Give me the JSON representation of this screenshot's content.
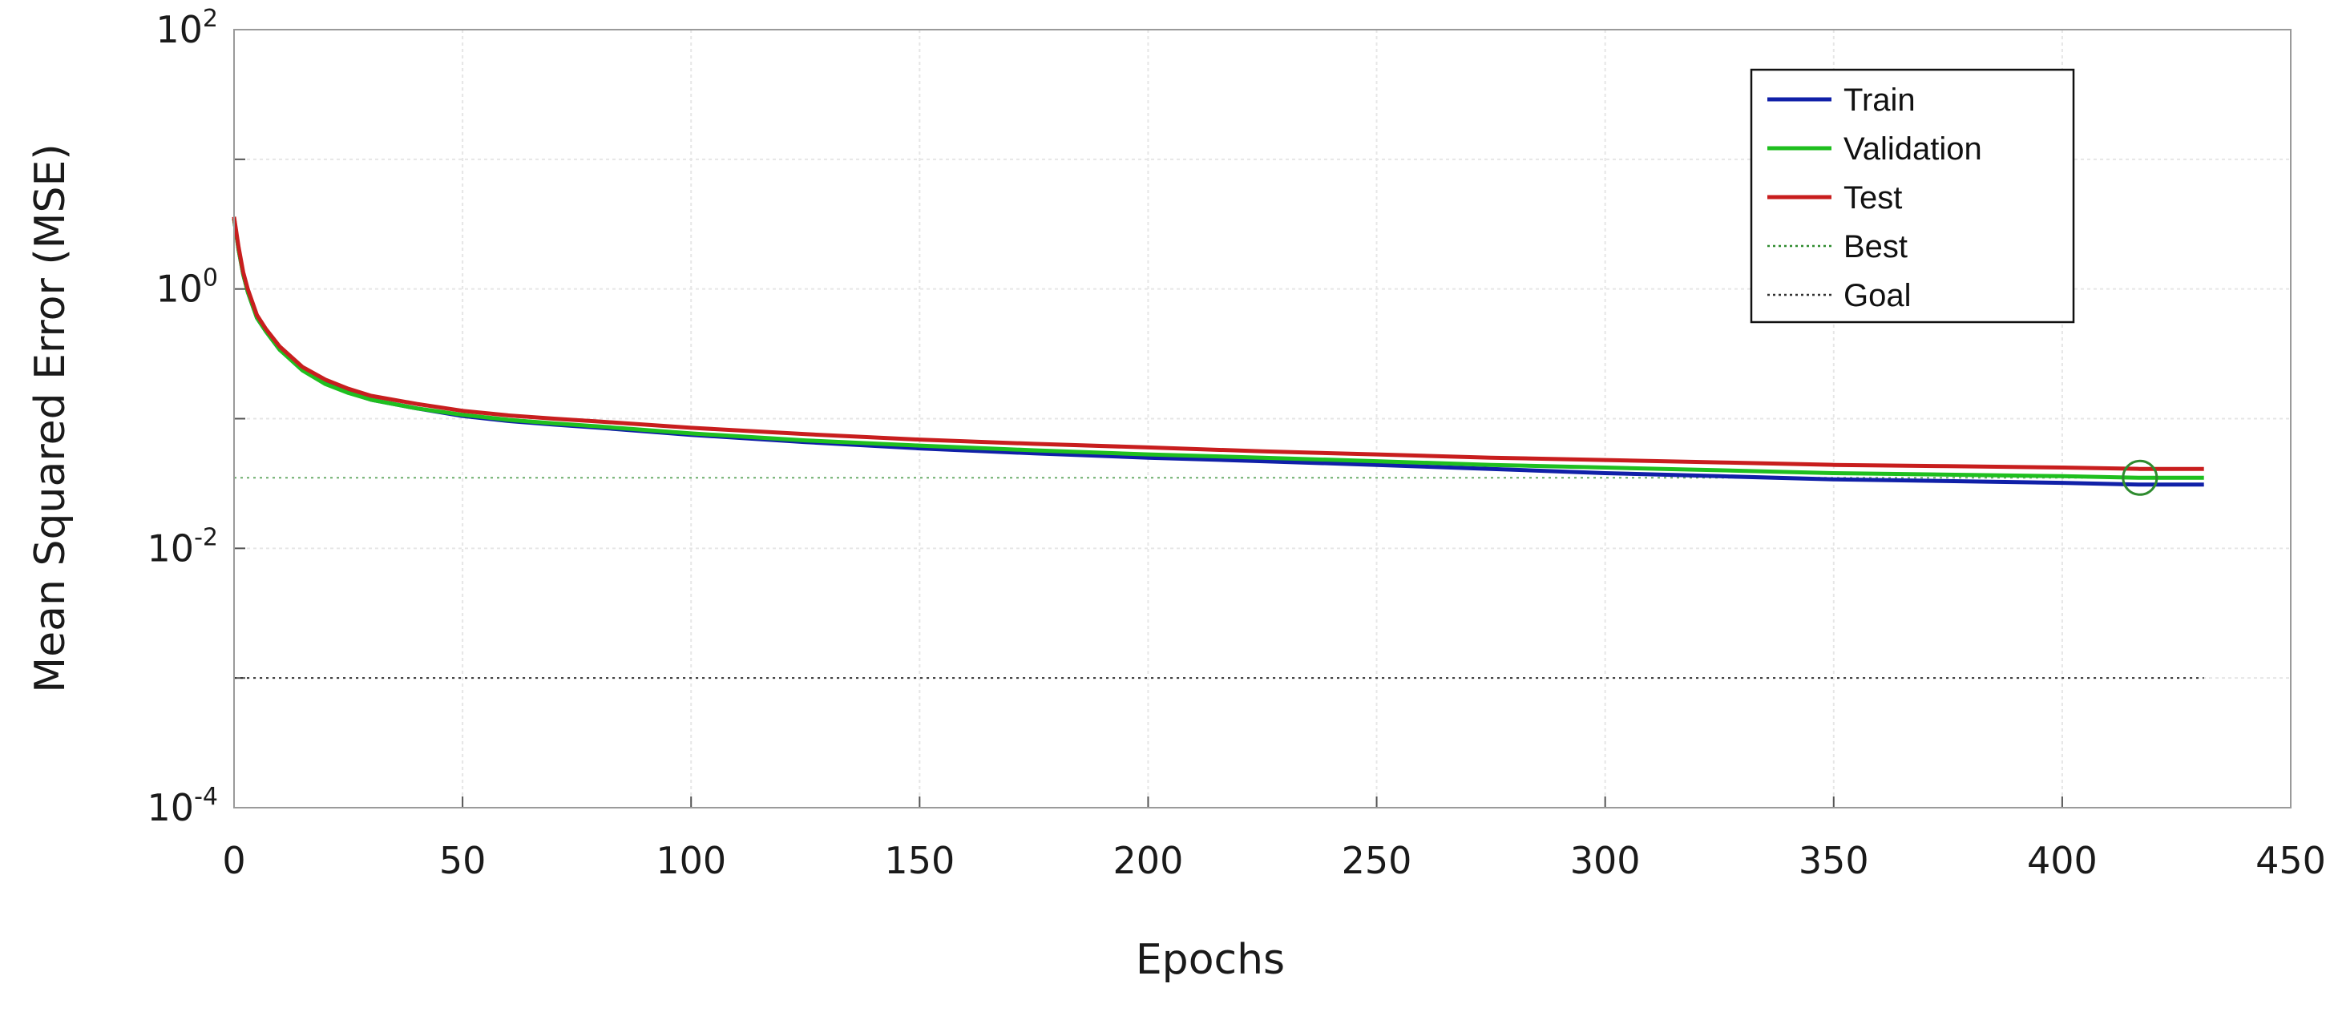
{
  "chart_data": {
    "type": "line",
    "title": "",
    "xlabel": "Epochs",
    "ylabel": "Mean Squared Error (MSE)",
    "xlim": [
      0,
      450
    ],
    "x_ticks": [
      "0",
      "50",
      "100",
      "150",
      "200",
      "250",
      "300",
      "350",
      "400",
      "450"
    ],
    "y_scale": "log",
    "ylim": [
      0.0001,
      100
    ],
    "y_ticks": [
      {
        "base": "10",
        "exp": "-4"
      },
      {
        "base": "10",
        "exp": "-2"
      },
      {
        "base": "10",
        "exp": "0"
      },
      {
        "base": "10",
        "exp": "2"
      }
    ],
    "grid": true,
    "legend_position": "top-right",
    "x": [
      0,
      1,
      2,
      3,
      5,
      7,
      10,
      15,
      20,
      25,
      30,
      40,
      50,
      60,
      70,
      80,
      100,
      125,
      150,
      175,
      200,
      225,
      250,
      275,
      300,
      325,
      350,
      375,
      400,
      417,
      431
    ],
    "series": [
      {
        "name": "Train",
        "color": "#1020a8",
        "values": [
          3.5,
          2.0,
          1.3,
          0.95,
          0.6,
          0.47,
          0.34,
          0.24,
          0.19,
          0.16,
          0.14,
          0.12,
          0.105,
          0.096,
          0.09,
          0.085,
          0.075,
          0.066,
          0.059,
          0.054,
          0.05,
          0.047,
          0.044,
          0.041,
          0.038,
          0.036,
          0.034,
          0.033,
          0.032,
          0.031,
          0.031
        ]
      },
      {
        "name": "Validation",
        "color": "#1fbf1f",
        "values": [
          3.5,
          2.0,
          1.3,
          0.95,
          0.6,
          0.47,
          0.34,
          0.235,
          0.185,
          0.158,
          0.14,
          0.12,
          0.107,
          0.098,
          0.092,
          0.087,
          0.077,
          0.068,
          0.062,
          0.057,
          0.053,
          0.05,
          0.047,
          0.044,
          0.042,
          0.04,
          0.038,
          0.037,
          0.036,
          0.035,
          0.035
        ]
      },
      {
        "name": "Test",
        "color": "#c81e1e",
        "values": [
          3.6,
          2.1,
          1.35,
          1.0,
          0.63,
          0.49,
          0.36,
          0.25,
          0.2,
          0.17,
          0.15,
          0.13,
          0.115,
          0.106,
          0.1,
          0.095,
          0.085,
          0.076,
          0.069,
          0.064,
          0.06,
          0.056,
          0.053,
          0.05,
          0.048,
          0.046,
          0.044,
          0.043,
          0.042,
          0.041,
          0.041
        ]
      }
    ],
    "best": {
      "name": "Best",
      "epoch": 417,
      "value": 0.035,
      "color": "#2e8b2e"
    },
    "goal": {
      "name": "Goal",
      "value": 0.001,
      "color": "#333333"
    }
  }
}
